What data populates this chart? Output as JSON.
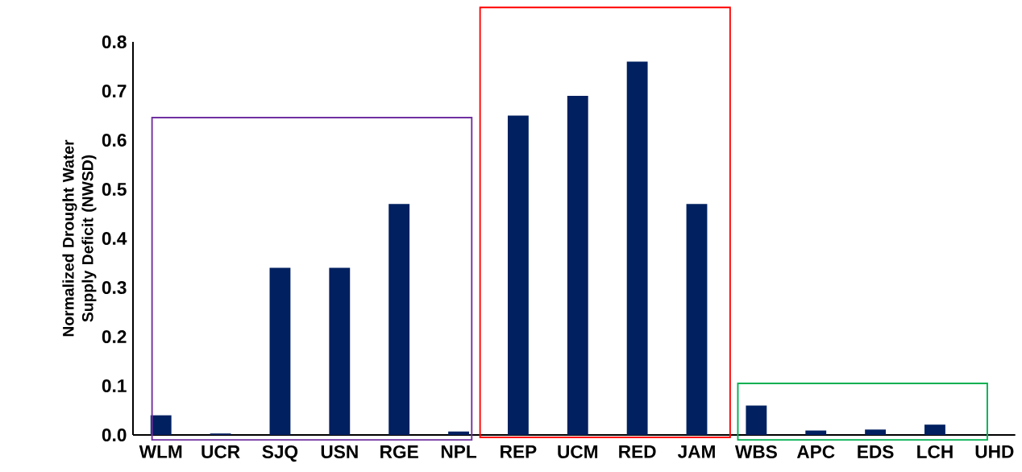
{
  "chart_data": {
    "type": "bar",
    "ylabel": "Normalized Drought Water Supply Deficit (NWSD)",
    "categories": [
      "WLM",
      "UCR",
      "SJQ",
      "USN",
      "RGE",
      "NPL",
      "REP",
      "UCM",
      "RED",
      "JAM",
      "WBS",
      "APC",
      "EDS",
      "LCH",
      "UHD"
    ],
    "values": [
      0.04,
      0.003,
      0.34,
      0.34,
      0.47,
      0.007,
      0.65,
      0.69,
      0.76,
      0.47,
      0.06,
      0.009,
      0.011,
      0.021,
      0
    ],
    "color": "#002060",
    "ylim": [
      0,
      0.8
    ],
    "yticks": [
      {
        "value": 0,
        "label": "0.0"
      },
      0.1,
      0.2,
      0.3,
      0.4,
      0.5,
      0.6,
      0.7,
      0.8
    ]
  }
}
